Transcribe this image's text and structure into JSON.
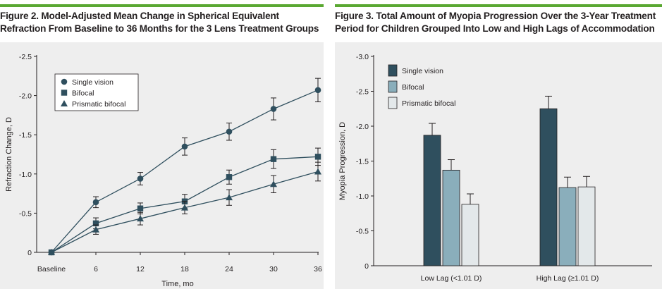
{
  "colors": {
    "accent_bar": "#5aa832",
    "panel_bg": "#eeeeee",
    "line_series": "#2f4f5e",
    "bar_single_vision": "#2f4f5e",
    "bar_bifocal": "#8aaebb",
    "bar_prismatic": "#e3e8ea"
  },
  "chart_data": [
    {
      "type": "line",
      "title_line1": "Figure 2. Model-Adjusted Mean Change in Spherical Equivalent",
      "title_line2": "Refraction From Baseline to 36 Months for the 3 Lens Treatment Groups",
      "xlabel": "Time, mo",
      "ylabel": "Refraction Change, D",
      "categories": [
        "Baseline",
        "6",
        "12",
        "18",
        "24",
        "30",
        "36"
      ],
      "yticks": [
        "-2.5",
        "-2.0",
        "-1.5",
        "-1.0",
        "-0.5",
        "0"
      ],
      "ylim": [
        0,
        -2.5
      ],
      "legend_position": "top-left",
      "error_bars": true,
      "series": [
        {
          "name": "Single vision",
          "marker": "circle",
          "values": [
            0,
            -0.64,
            -0.94,
            -1.35,
            -1.54,
            -1.83,
            -2.07
          ],
          "errors": [
            0,
            0.07,
            0.08,
            0.11,
            0.11,
            0.14,
            0.15
          ]
        },
        {
          "name": "Bifocal",
          "marker": "square",
          "values": [
            0,
            -0.37,
            -0.56,
            -0.65,
            -0.96,
            -1.19,
            -1.22
          ],
          "errors": [
            0,
            0.07,
            0.07,
            0.09,
            0.09,
            0.12,
            0.11
          ]
        },
        {
          "name": "Prismatic bifocal",
          "marker": "triangle",
          "values": [
            0,
            -0.29,
            -0.43,
            -0.57,
            -0.7,
            -0.87,
            -1.03
          ],
          "errors": [
            0,
            0.06,
            0.08,
            0.08,
            0.1,
            0.11,
            0.12
          ]
        }
      ]
    },
    {
      "type": "bar",
      "title_line1": "Figure 3. Total Amount of Myopia Progression Over the 3-Year Treatment",
      "title_line2": "Period for Children Grouped Into Low and High Lags of Accommodation",
      "xlabel": "",
      "ylabel": "Myopia Progression, D",
      "categories": [
        "Low Lag (<1.01 D)",
        "High Lag (≥1.01 D)"
      ],
      "yticks": [
        "-3.0",
        "-2.5",
        "-2.0",
        "-1.5",
        "-1.0",
        "-0.5",
        "0"
      ],
      "ylim": [
        0,
        -3.0
      ],
      "legend_position": "top-left",
      "error_bars": true,
      "series": [
        {
          "name": "Single vision",
          "values": [
            -1.87,
            -2.25
          ],
          "errors": [
            0.17,
            0.18
          ]
        },
        {
          "name": "Bifocal",
          "values": [
            -1.37,
            -1.12
          ],
          "errors": [
            0.15,
            0.15
          ]
        },
        {
          "name": "Prismatic bifocal",
          "values": [
            -0.88,
            -1.13
          ],
          "errors": [
            0.15,
            0.15
          ]
        }
      ]
    }
  ]
}
